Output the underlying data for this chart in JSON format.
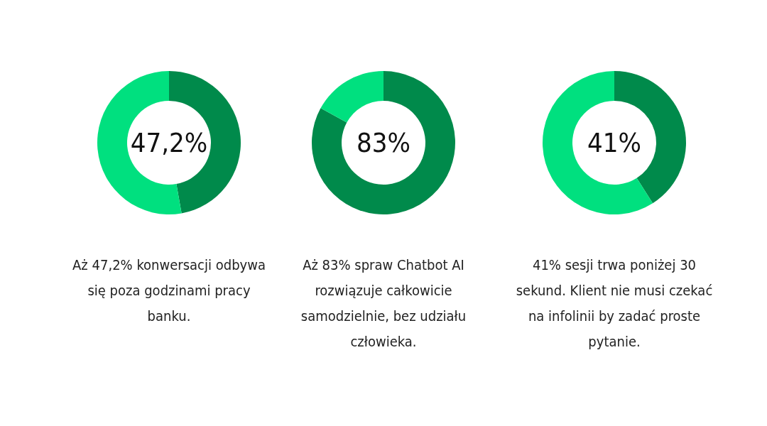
{
  "chart_data": [
    {
      "type": "donut",
      "categories": [
        null,
        null
      ],
      "values": [
        47.2,
        52.8
      ],
      "colors": [
        "#008a4b",
        "#00e07f"
      ],
      "annotations": [
        "47,2%",
        "Aż 47,2% konwersacji odbywa się poza godzinami pracy banku."
      ]
    },
    {
      "type": "donut",
      "categories": [
        null,
        null
      ],
      "values": [
        83,
        17
      ],
      "colors": [
        "#008a4b",
        "#00e07f"
      ],
      "annotations": [
        "83%",
        "Aż 83% spraw Chatbot AI rozwiązuje całkowicie samodzielnie, bez udziału człowieka."
      ]
    },
    {
      "type": "donut",
      "categories": [
        null,
        null
      ],
      "values": [
        41,
        59
      ],
      "colors": [
        "#008a4b",
        "#00e07f"
      ],
      "annotations": [
        "41%",
        "41% sesji trwa poniżej 30 sekund. Klient nie musi czekać na infolinii by zadać proste pytanie."
      ]
    }
  ]
}
